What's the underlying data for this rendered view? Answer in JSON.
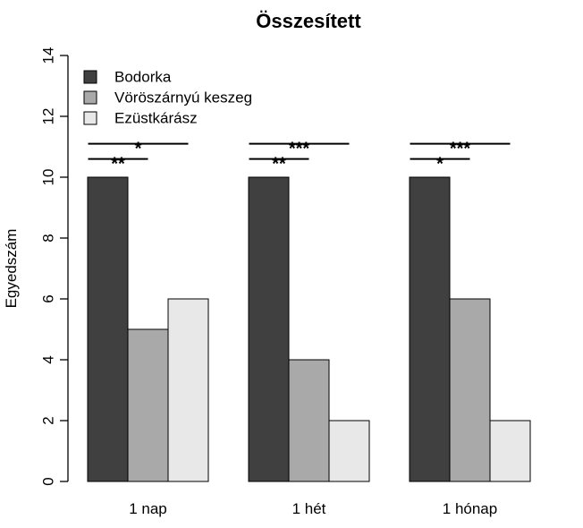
{
  "chart_data": {
    "type": "bar",
    "title": "Összesített",
    "xlabel": "",
    "ylabel": "Egyedszám",
    "ylim": [
      0,
      14
    ],
    "yticks": [
      0,
      2,
      4,
      6,
      8,
      10,
      12,
      14
    ],
    "categories": [
      "1 nap",
      "1 hét",
      "1 hónap"
    ],
    "series": [
      {
        "name": "Bodorka",
        "values": [
          10,
          10,
          10
        ],
        "color": "#404040"
      },
      {
        "name": "Vöröszárnyú keszeg",
        "values": [
          5,
          4,
          6
        ],
        "color": "#a9a9a9"
      },
      {
        "name": "Ezüstkárász",
        "values": [
          6,
          2,
          2
        ],
        "color": "#e8e8e8"
      }
    ],
    "legend_position": "top-left",
    "grid": false,
    "annotations": [
      {
        "category": "1 nap",
        "from": "Bodorka",
        "to": "Vöröszárnyú keszeg",
        "label": "**"
      },
      {
        "category": "1 nap",
        "from": "Bodorka",
        "to": "Ezüstkárász",
        "label": "*"
      },
      {
        "category": "1 hét",
        "from": "Bodorka",
        "to": "Vöröszárnyú keszeg",
        "label": "**"
      },
      {
        "category": "1 hét",
        "from": "Bodorka",
        "to": "Ezüstkárász",
        "label": "***"
      },
      {
        "category": "1 hónap",
        "from": "Bodorka",
        "to": "Vöröszárnyú keszeg",
        "label": "*"
      },
      {
        "category": "1 hónap",
        "from": "Bodorka",
        "to": "Ezüstkárász",
        "label": "***"
      }
    ]
  }
}
